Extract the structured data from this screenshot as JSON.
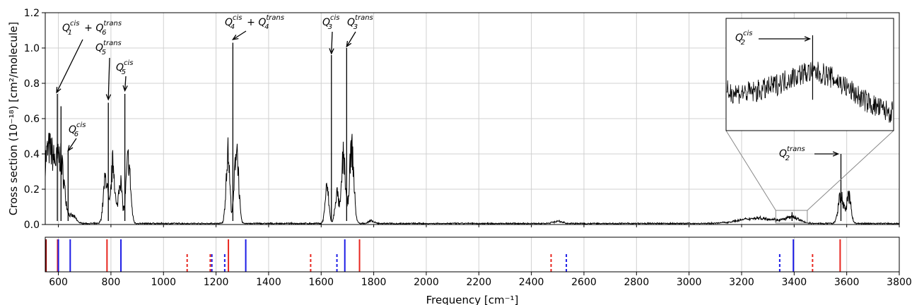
{
  "chart_data": [
    {
      "type": "line",
      "xlabel": "Frequency [cm⁻¹]",
      "ylabel": "Cross section (10⁻¹⁸) [cm²/molecule]",
      "xlim": [
        550,
        3800
      ],
      "ylim": [
        0,
        1.2
      ],
      "x_ticks": [
        600,
        800,
        1000,
        1200,
        1400,
        1600,
        1800,
        2000,
        2200,
        2400,
        2600,
        2800,
        3000,
        3200,
        3400,
        3600,
        3800
      ],
      "y_ticks": [
        "0.0",
        "0.2",
        "0.4",
        "0.6",
        "0.8",
        "1.0",
        "1.2"
      ],
      "grid": true,
      "line_color": "#000000",
      "sharp_peaks": [
        {
          "x": 596,
          "y": 0.74
        },
        {
          "x": 610,
          "y": 0.67
        },
        {
          "x": 637,
          "y": 0.42
        },
        {
          "x": 790,
          "y": 0.69
        },
        {
          "x": 853,
          "y": 0.74
        },
        {
          "x": 1264,
          "y": 1.03
        },
        {
          "x": 1639,
          "y": 0.96
        },
        {
          "x": 1697,
          "y": 1.0
        },
        {
          "x": 3392,
          "y": 0.07
        },
        {
          "x": 3578,
          "y": 0.4
        }
      ],
      "bands": [
        {
          "center": 565,
          "width": 35,
          "height": 0.42
        },
        {
          "center": 610,
          "width": 20,
          "height": 0.28
        },
        {
          "center": 655,
          "width": 18,
          "height": 0.04
        },
        {
          "center": 780,
          "width": 12,
          "height": 0.26
        },
        {
          "center": 808,
          "width": 10,
          "height": 0.34
        },
        {
          "center": 835,
          "width": 10,
          "height": 0.25
        },
        {
          "center": 866,
          "width": 12,
          "height": 0.36
        },
        {
          "center": 1245,
          "width": 10,
          "height": 0.4
        },
        {
          "center": 1278,
          "width": 11,
          "height": 0.44
        },
        {
          "center": 1622,
          "width": 10,
          "height": 0.2
        },
        {
          "center": 1660,
          "width": 10,
          "height": 0.17
        },
        {
          "center": 1685,
          "width": 10,
          "height": 0.38
        },
        {
          "center": 1716,
          "width": 12,
          "height": 0.42
        },
        {
          "center": 1790,
          "width": 14,
          "height": 0.014
        },
        {
          "center": 2500,
          "width": 25,
          "height": 0.012
        },
        {
          "center": 3265,
          "width": 100,
          "height": 0.03
        },
        {
          "center": 3395,
          "width": 35,
          "height": 0.03
        },
        {
          "center": 3578,
          "width": 14,
          "height": 0.16
        },
        {
          "center": 3608,
          "width": 12,
          "height": 0.15
        }
      ],
      "annotations": [
        {
          "base": "Q",
          "sub": "1",
          "sup": "cis",
          "plus": {
            "base": "Q",
            "sub": "6",
            "sup": "trans"
          },
          "arrow_to": {
            "x": 596,
            "y": 0.74
          }
        },
        {
          "base": "Q",
          "sub": "5",
          "sup": "trans",
          "arrow_to": {
            "x": 790,
            "y": 0.7
          }
        },
        {
          "base": "Q",
          "sub": "5",
          "sup": "cis",
          "arrow_to": {
            "x": 853,
            "y": 0.75
          }
        },
        {
          "base": "Q",
          "sub": "6",
          "sup": "cis",
          "arrow_to": {
            "x": 637,
            "y": 0.41
          }
        },
        {
          "base": "Q",
          "sub": "4",
          "sup": "cis",
          "plus": {
            "base": "Q",
            "sub": "4",
            "sup": "trans"
          },
          "arrow_to": {
            "x": 1264,
            "y": 1.04
          }
        },
        {
          "base": "Q",
          "sub": "3",
          "sup": "cis",
          "arrow_to": {
            "x": 1639,
            "y": 0.96
          }
        },
        {
          "base": "Q",
          "sub": "3",
          "sup": "trans",
          "arrow_to": {
            "x": 1697,
            "y": 1.0
          }
        },
        {
          "base": "Q",
          "sub": "2",
          "sup": "trans",
          "arrow_to": {
            "x": 3578,
            "y": 0.4
          }
        }
      ],
      "inset": {
        "x_range": [
          3330,
          3450
        ],
        "y_range": [
          0,
          0.08
        ],
        "annotation": {
          "base": "Q",
          "sub": "2",
          "sup": "cis"
        }
      }
    },
    {
      "type": "stick",
      "xlim": [
        550,
        3800
      ],
      "x_ticks": [
        600,
        800,
        1000,
        1200,
        1400,
        1600,
        1800,
        2000,
        2200,
        2400,
        2600,
        2800,
        3000,
        3200,
        3400,
        3600,
        3800
      ],
      "sticks": [
        {
          "x": 553,
          "color": "#8b0000",
          "style": "solid"
        },
        {
          "x": 597,
          "color": "#e8261f",
          "style": "solid"
        },
        {
          "x": 600,
          "color": "#1c1ce6",
          "style": "solid"
        },
        {
          "x": 645,
          "color": "#1c1ce6",
          "style": "solid"
        },
        {
          "x": 785,
          "color": "#e8261f",
          "style": "solid"
        },
        {
          "x": 838,
          "color": "#1c1ce6",
          "style": "solid"
        },
        {
          "x": 1090,
          "color": "#e8261f",
          "style": "dashed"
        },
        {
          "x": 1178,
          "color": "#e8261f",
          "style": "dashed"
        },
        {
          "x": 1184,
          "color": "#1c1ce6",
          "style": "dashed"
        },
        {
          "x": 1233,
          "color": "#1c1ce6",
          "style": "dashed"
        },
        {
          "x": 1247,
          "color": "#e8261f",
          "style": "solid"
        },
        {
          "x": 1313,
          "color": "#1c1ce6",
          "style": "solid"
        },
        {
          "x": 1560,
          "color": "#e8261f",
          "style": "dashed"
        },
        {
          "x": 1660,
          "color": "#1c1ce6",
          "style": "dashed"
        },
        {
          "x": 1690,
          "color": "#1c1ce6",
          "style": "solid"
        },
        {
          "x": 1746,
          "color": "#e8261f",
          "style": "solid"
        },
        {
          "x": 2475,
          "color": "#e8261f",
          "style": "dashed"
        },
        {
          "x": 2533,
          "color": "#1c1ce6",
          "style": "dashed"
        },
        {
          "x": 3345,
          "color": "#1c1ce6",
          "style": "dashed"
        },
        {
          "x": 3397,
          "color": "#1c1ce6",
          "style": "solid"
        },
        {
          "x": 3470,
          "color": "#e8261f",
          "style": "dashed"
        },
        {
          "x": 3575,
          "color": "#e8261f",
          "style": "solid"
        }
      ]
    }
  ]
}
